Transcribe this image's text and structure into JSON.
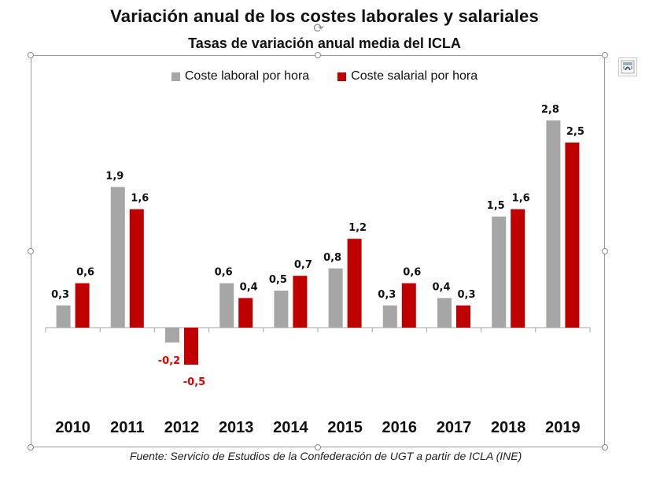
{
  "chart_data": {
    "type": "bar",
    "title": "Variación anual de los costes laborales y salariales",
    "subtitle": "Tasas de variación anual media del ICLA",
    "xlabel": "",
    "ylabel": "",
    "categories": [
      "2010",
      "2011",
      "2012",
      "2013",
      "2014",
      "2015",
      "2016",
      "2017",
      "2018",
      "2019"
    ],
    "series": [
      {
        "name": "Coste laboral por hora",
        "color": "#a6a6a6",
        "values": [
          0.3,
          1.9,
          -0.2,
          0.6,
          0.5,
          0.8,
          0.3,
          0.4,
          1.5,
          2.8
        ],
        "labels": [
          "0,3",
          "1,9",
          "-0,2",
          "0,6",
          "0,5",
          "0,8",
          "0,3",
          "0,4",
          "1,5",
          "2,8"
        ]
      },
      {
        "name": "Coste salarial por hora",
        "color": "#c00000",
        "values": [
          0.6,
          1.6,
          -0.5,
          0.4,
          0.7,
          1.2,
          0.6,
          0.3,
          1.6,
          2.5
        ],
        "labels": [
          "0,6",
          "1,6",
          "-0,5",
          "0,4",
          "0,7",
          "1,2",
          "0,6",
          "0,3",
          "1,6",
          "2,5"
        ]
      }
    ],
    "negative_label_color": "#e00000",
    "ylim": [
      -0.7,
      3.0
    ],
    "grid": false,
    "legend_position": "top-center",
    "source": "Fuente: Servicio de Estudios de la Confederación de UGT a partir de ICLA (INE)"
  },
  "ui": {
    "layout_options_icon": "layout-options-icon",
    "rotate_handle_icon": "rotate-icon"
  }
}
